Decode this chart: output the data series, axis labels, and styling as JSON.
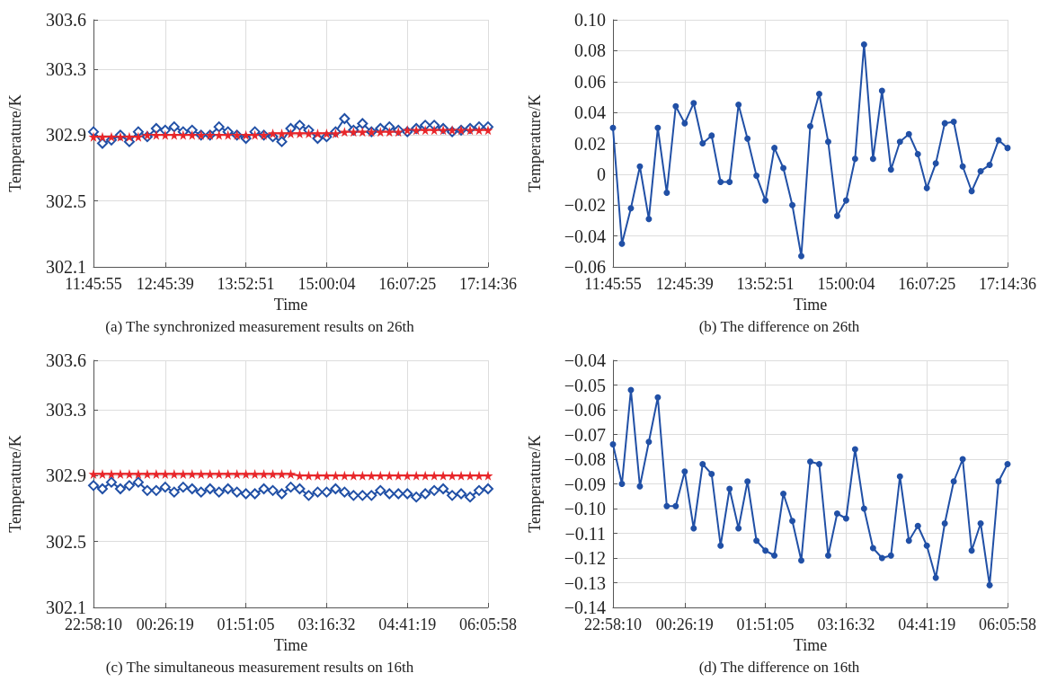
{
  "chart_data": [
    {
      "type": "line",
      "title": "(a) The synchronized measurement results on 26th",
      "xlabel": "Time",
      "ylabel": "Temperature/K",
      "categories": [
        "11:45:55",
        null,
        null,
        null,
        null,
        null,
        null,
        null,
        "12:45:39",
        null,
        null,
        null,
        null,
        null,
        null,
        null,
        null,
        "13:52:51",
        null,
        null,
        null,
        null,
        null,
        null,
        null,
        null,
        "15:00:04",
        null,
        null,
        null,
        null,
        null,
        null,
        null,
        null,
        "16:07:25",
        null,
        null,
        null,
        null,
        null,
        null,
        null,
        null,
        "17:14:36"
      ],
      "series": [
        {
          "color": "#2150a6",
          "marker": "diamond",
          "values": [
            302.92,
            302.85,
            302.87,
            302.9,
            302.86,
            302.92,
            302.89,
            302.94,
            302.93,
            302.95,
            302.92,
            302.93,
            302.9,
            302.9,
            302.95,
            302.92,
            302.9,
            302.88,
            302.92,
            302.9,
            302.89,
            302.86,
            302.94,
            302.96,
            302.93,
            302.88,
            302.89,
            302.92,
            303.0,
            302.93,
            302.97,
            302.92,
            302.94,
            302.95,
            302.93,
            302.92,
            302.94,
            302.96,
            302.96,
            302.94,
            302.92,
            302.93,
            302.94,
            302.95,
            302.95
          ]
        },
        {
          "color": "#e8262a",
          "marker": "star",
          "values": [
            302.89,
            302.89,
            302.89,
            302.89,
            302.89,
            302.89,
            302.9,
            302.9,
            302.9,
            302.9,
            302.9,
            302.9,
            302.9,
            302.9,
            302.9,
            302.9,
            302.9,
            302.9,
            302.9,
            302.9,
            302.91,
            302.91,
            302.91,
            302.91,
            302.91,
            302.91,
            302.91,
            302.91,
            302.92,
            302.92,
            302.92,
            302.92,
            302.92,
            302.92,
            302.92,
            302.93,
            302.93,
            302.93,
            302.93,
            302.93,
            302.93,
            302.93,
            302.93,
            302.93,
            302.93
          ]
        }
      ],
      "ylim": [
        302.1,
        303.6
      ],
      "yticks": [
        302.1,
        302.5,
        302.9,
        303.3,
        303.6
      ],
      "grid": true
    },
    {
      "type": "line",
      "title": "(b) The difference on 26th",
      "xlabel": "Time",
      "ylabel": "Temperature/K",
      "categories": [
        "11:45:55",
        null,
        null,
        null,
        null,
        null,
        null,
        null,
        "12:45:39",
        null,
        null,
        null,
        null,
        null,
        null,
        null,
        null,
        "13:52:51",
        null,
        null,
        null,
        null,
        null,
        null,
        null,
        null,
        "15:00:04",
        null,
        null,
        null,
        null,
        null,
        null,
        null,
        null,
        "16:07:25",
        null,
        null,
        null,
        null,
        null,
        null,
        null,
        null,
        "17:14:36"
      ],
      "series": [
        {
          "color": "#2150a6",
          "marker": "circle",
          "values": [
            0.03,
            -0.045,
            -0.022,
            0.005,
            -0.029,
            0.03,
            -0.012,
            0.044,
            0.033,
            0.046,
            0.02,
            0.025,
            -0.005,
            -0.005,
            0.045,
            0.023,
            -0.001,
            -0.017,
            0.017,
            0.004,
            -0.02,
            -0.053,
            0.031,
            0.052,
            0.021,
            -0.027,
            -0.017,
            0.01,
            0.084,
            0.01,
            0.054,
            0.003,
            0.021,
            0.026,
            0.013,
            -0.009,
            0.007,
            0.033,
            0.034,
            0.005,
            -0.011,
            0.002,
            0.006,
            0.022,
            0.017
          ]
        }
      ],
      "ylim": [
        -0.06,
        0.1
      ],
      "yticks": [
        {
          "value": -0.06,
          "label": "−0.06"
        },
        {
          "value": -0.04,
          "label": "−0.04"
        },
        {
          "value": -0.02,
          "label": "−0.02"
        },
        0,
        0.02,
        0.04,
        0.06,
        0.08,
        {
          "value": 0.1,
          "label": "0.10"
        }
      ],
      "grid": true
    },
    {
      "type": "line",
      "title": "(c) The simultaneous measurement results on 16th",
      "xlabel": "Time",
      "ylabel": "Temperature/K",
      "categories": [
        "22:58:10",
        null,
        null,
        null,
        null,
        null,
        null,
        null,
        "00:26:19",
        null,
        null,
        null,
        null,
        null,
        null,
        null,
        null,
        "01:51:05",
        null,
        null,
        null,
        null,
        null,
        null,
        null,
        null,
        "03:16:32",
        null,
        null,
        null,
        null,
        null,
        null,
        null,
        null,
        "04:41:19",
        null,
        null,
        null,
        null,
        null,
        null,
        null,
        null,
        "06:05:58"
      ],
      "series": [
        {
          "color": "#2150a6",
          "marker": "diamond",
          "values": [
            302.84,
            302.82,
            302.86,
            302.82,
            302.84,
            302.86,
            302.81,
            302.81,
            302.83,
            302.8,
            302.83,
            302.82,
            302.8,
            302.82,
            302.8,
            302.82,
            302.8,
            302.79,
            302.79,
            302.82,
            302.81,
            302.79,
            302.83,
            302.82,
            302.78,
            302.8,
            302.8,
            302.82,
            302.8,
            302.78,
            302.78,
            302.78,
            302.81,
            302.79,
            302.79,
            302.79,
            302.77,
            302.79,
            302.81,
            302.82,
            302.78,
            302.79,
            302.77,
            302.81,
            302.82
          ]
        },
        {
          "color": "#e8262a",
          "marker": "star",
          "values": [
            302.91,
            302.91,
            302.91,
            302.91,
            302.91,
            302.91,
            302.91,
            302.91,
            302.91,
            302.91,
            302.91,
            302.91,
            302.91,
            302.91,
            302.91,
            302.91,
            302.91,
            302.91,
            302.91,
            302.91,
            302.91,
            302.91,
            302.91,
            302.9,
            302.9,
            302.9,
            302.9,
            302.9,
            302.9,
            302.9,
            302.9,
            302.9,
            302.9,
            302.9,
            302.9,
            302.9,
            302.9,
            302.9,
            302.9,
            302.9,
            302.9,
            302.9,
            302.9,
            302.9,
            302.9
          ]
        }
      ],
      "ylim": [
        302.1,
        303.6
      ],
      "yticks": [
        302.1,
        302.5,
        302.9,
        303.3,
        303.6
      ],
      "grid": true
    },
    {
      "type": "line",
      "title": "(d) The difference on 16th",
      "xlabel": "Time",
      "ylabel": "Temperature/K",
      "categories": [
        "22:58:10",
        null,
        null,
        null,
        null,
        null,
        null,
        null,
        "00:26:19",
        null,
        null,
        null,
        null,
        null,
        null,
        null,
        null,
        "01:51:05",
        null,
        null,
        null,
        null,
        null,
        null,
        null,
        null,
        "03:16:32",
        null,
        null,
        null,
        null,
        null,
        null,
        null,
        null,
        "04:41:19",
        null,
        null,
        null,
        null,
        null,
        null,
        null,
        null,
        "06:05:58"
      ],
      "series": [
        {
          "color": "#2150a6",
          "marker": "circle",
          "values": [
            -0.074,
            -0.09,
            -0.052,
            -0.091,
            -0.073,
            -0.055,
            -0.099,
            -0.099,
            -0.085,
            -0.108,
            -0.082,
            -0.086,
            -0.115,
            -0.092,
            -0.108,
            -0.089,
            -0.113,
            -0.117,
            -0.119,
            -0.094,
            -0.105,
            -0.121,
            -0.081,
            -0.082,
            -0.119,
            -0.102,
            -0.104,
            -0.076,
            -0.1,
            -0.116,
            -0.12,
            -0.119,
            -0.087,
            -0.113,
            -0.107,
            -0.115,
            -0.128,
            -0.106,
            -0.089,
            -0.08,
            -0.117,
            -0.106,
            -0.131,
            -0.089,
            -0.082
          ]
        }
      ],
      "ylim": [
        -0.14,
        -0.04
      ],
      "yticks": [
        {
          "value": -0.14,
          "label": "−0.14"
        },
        {
          "value": -0.13,
          "label": "−0.13"
        },
        {
          "value": -0.12,
          "label": "−0.12"
        },
        {
          "value": -0.11,
          "label": "−0.11"
        },
        {
          "value": -0.1,
          "label": "−0.10"
        },
        {
          "value": -0.09,
          "label": "−0.09"
        },
        {
          "value": -0.08,
          "label": "−0.08"
        },
        {
          "value": -0.07,
          "label": "−0.07"
        },
        {
          "value": -0.06,
          "label": "−0.06"
        },
        {
          "value": -0.05,
          "label": "−0.05"
        },
        {
          "value": -0.04,
          "label": "−0.04"
        }
      ],
      "grid": true
    }
  ]
}
